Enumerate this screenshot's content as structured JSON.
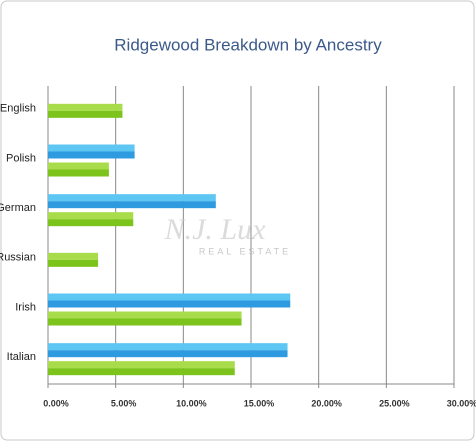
{
  "chart_data": {
    "type": "hbar",
    "title": "Ridgewood Breakdown by Ancestry",
    "watermark": "N.J. Lux",
    "watermark_sub": "REAL ESTATE",
    "categories": [
      "English",
      "Polish",
      "German",
      "Russian",
      "Irish",
      "Italian"
    ],
    "series": [
      {
        "color": "#2e9be0",
        "values": [
          null,
          6.4,
          12.4,
          null,
          17.9,
          17.7
        ]
      },
      {
        "color": "#7cc31c",
        "values": [
          5.5,
          4.5,
          6.3,
          3.7,
          14.3,
          13.8
        ]
      }
    ],
    "xlim": [
      0,
      30
    ],
    "xticks": [
      {
        "value": 0,
        "label": "0.00%"
      },
      {
        "value": 5,
        "label": "5.00%"
      },
      {
        "value": 10,
        "label": "10.00%"
      },
      {
        "value": 15,
        "label": "15.00%"
      },
      {
        "value": 20,
        "label": "20.00%"
      },
      {
        "value": 25,
        "label": "25.00%"
      },
      {
        "value": 30,
        "label": "30.00%"
      }
    ],
    "grid": true
  }
}
